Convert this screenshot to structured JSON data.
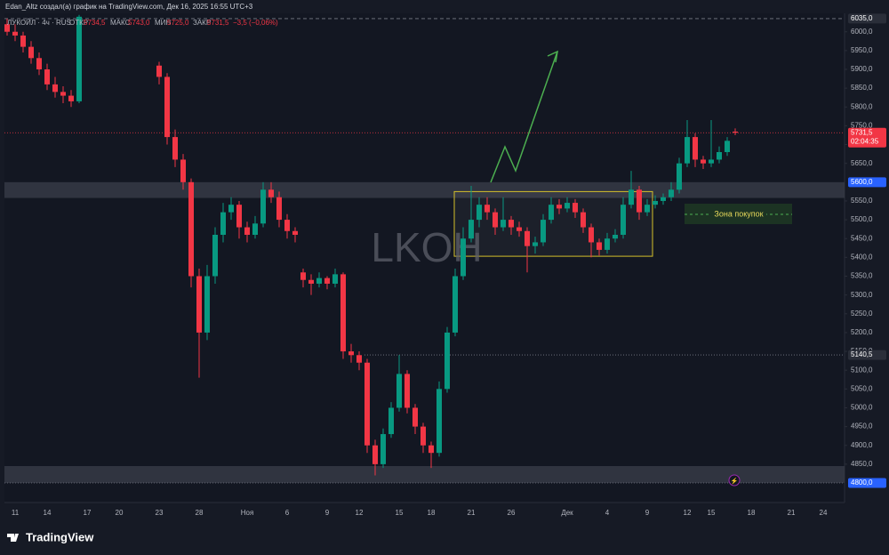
{
  "header": "Edan_Altz создал(а) график на TradingView.com, Дек 16, 2025 16:55 UTC+3",
  "legend": {
    "symbol": "ЛУКОЙЛ · 4ч · RUS",
    "open_label": "ОТКР",
    "open": "5734,5",
    "high_label": "МАКС",
    "high": "5743,0",
    "low_label": "МИН",
    "low": "5725,0",
    "close_label": "ЗАКР",
    "close": "5731,5",
    "change": "−3,5 (−0,06%)"
  },
  "footer": "TradingView",
  "chart_data": {
    "type": "candlestick",
    "watermark": "LKOH",
    "annotation": "Зона покупок",
    "up_color": "#089981",
    "down_color": "#f23645",
    "ylim": [
      4748,
      6049
    ],
    "yticks": [
      {
        "value": 4850,
        "label": "4850,0"
      },
      {
        "value": 4900,
        "label": "4900,0"
      },
      {
        "value": 4950,
        "label": "4950,0"
      },
      {
        "value": 5000,
        "label": "5000,0"
      },
      {
        "value": 5050,
        "label": "5050,0"
      },
      {
        "value": 5100,
        "label": "5100,0"
      },
      {
        "value": 5150,
        "label": "5150,0"
      },
      {
        "value": 5200,
        "label": "5200,0"
      },
      {
        "value": 5250,
        "label": "5250,0"
      },
      {
        "value": 5300,
        "label": "5300,0"
      },
      {
        "value": 5350,
        "label": "5350,0"
      },
      {
        "value": 5400,
        "label": "5400,0"
      },
      {
        "value": 5450,
        "label": "5450,0"
      },
      {
        "value": 5500,
        "label": "5500,0"
      },
      {
        "value": 5550,
        "label": "5550,0"
      },
      {
        "value": 5650,
        "label": "5650,0"
      },
      {
        "value": 5700,
        "label": "5700,0"
      },
      {
        "value": 5750,
        "label": "5750,0"
      },
      {
        "value": 5800,
        "label": "5800,0"
      },
      {
        "value": 5850,
        "label": "5850,0"
      },
      {
        "value": 5900,
        "label": "5900,0"
      },
      {
        "value": 5950,
        "label": "5950,0"
      },
      {
        "value": 6000,
        "label": "6000,0"
      }
    ],
    "price_labels": [
      {
        "value": 6035,
        "label": "6035,0",
        "color": "#2a2e39",
        "line": "dashed"
      },
      {
        "value": 5731.5,
        "label": "5731,5",
        "sub": "02:04:35",
        "color": "#f23645",
        "line": "dotted"
      },
      {
        "value": 5600,
        "label": "5600,0",
        "color": "#2962ff",
        "line": "none"
      },
      {
        "value": 5140.5,
        "label": "5140,5",
        "color": "#2a2e39",
        "line": "dotted"
      },
      {
        "value": 4800,
        "label": "4800,0",
        "color": "#2962ff",
        "line": "dotted"
      }
    ],
    "zones": [
      {
        "from": 5558,
        "to": 5600
      },
      {
        "from": 4800,
        "to": 4845
      }
    ],
    "box": {
      "from": 5403,
      "to": 5575
    },
    "x_labels": [
      null,
      "11",
      null,
      null,
      null,
      "14",
      null,
      null,
      null,
      null,
      "17",
      null,
      null,
      null,
      "20",
      null,
      null,
      null,
      null,
      "23",
      null,
      null,
      null,
      null,
      "28",
      null,
      null,
      null,
      null,
      null,
      "Ноя",
      null,
      null,
      null,
      null,
      "6",
      null,
      null,
      null,
      null,
      "9",
      null,
      null,
      null,
      "12",
      null,
      null,
      null,
      null,
      "15",
      null,
      null,
      null,
      "18",
      null,
      null,
      null,
      null,
      "21",
      null,
      null,
      null,
      null,
      "26",
      null,
      null,
      null,
      null,
      null,
      null,
      "Дек",
      null,
      null,
      null,
      null,
      "4",
      null,
      null,
      null,
      null,
      "9",
      null,
      null,
      null,
      null,
      "12",
      null,
      null,
      "15",
      null,
      null,
      null,
      null,
      "18",
      null,
      null,
      null,
      null,
      "21",
      null,
      null,
      null,
      "24"
    ],
    "candles": [
      [
        6020,
        6035,
        5990,
        6000
      ],
      [
        6000,
        6020,
        5975,
        5990
      ],
      [
        5990,
        6000,
        5945,
        5960
      ],
      [
        5960,
        5975,
        5915,
        5930
      ],
      [
        5930,
        5945,
        5885,
        5900
      ],
      [
        5900,
        5915,
        5845,
        5860
      ],
      [
        5860,
        5880,
        5825,
        5840
      ],
      [
        5840,
        5855,
        5810,
        5830
      ],
      [
        5830,
        5845,
        5800,
        5815
      ],
      [
        5815,
        6045,
        5810,
        6040
      ],
      null,
      null,
      null,
      null,
      null,
      null,
      null,
      null,
      null,
      [
        5910,
        5920,
        5860,
        5880
      ],
      [
        5880,
        5890,
        5700,
        5720
      ],
      [
        5720,
        5740,
        5640,
        5660
      ],
      [
        5660,
        5675,
        5580,
        5600
      ],
      [
        5600,
        5610,
        5320,
        5350
      ],
      [
        5350,
        5370,
        5080,
        5200
      ],
      [
        5200,
        5380,
        5180,
        5350
      ],
      [
        5350,
        5480,
        5330,
        5460
      ],
      [
        5460,
        5545,
        5440,
        5520
      ],
      [
        5520,
        5560,
        5500,
        5540
      ],
      [
        5540,
        5550,
        5450,
        5480
      ],
      [
        5480,
        5495,
        5440,
        5460
      ],
      [
        5460,
        5510,
        5450,
        5490
      ],
      [
        5490,
        5600,
        5480,
        5580
      ],
      [
        5580,
        5600,
        5545,
        5560
      ],
      [
        5560,
        5575,
        5480,
        5500
      ],
      [
        5500,
        5515,
        5450,
        5470
      ],
      [
        5470,
        5480,
        5440,
        5460
      ],
      [
        5360,
        5370,
        5320,
        5340
      ],
      [
        5340,
        5355,
        5300,
        5330
      ],
      [
        5330,
        5360,
        5320,
        5345
      ],
      [
        5345,
        5350,
        5315,
        5330
      ],
      [
        5330,
        5370,
        5320,
        5355
      ],
      [
        5355,
        5360,
        5130,
        5150
      ],
      [
        5150,
        5170,
        5120,
        5140
      ],
      [
        5140,
        5150,
        5100,
        5120
      ],
      [
        5120,
        5130,
        4880,
        4900
      ],
      [
        4900,
        4915,
        4820,
        4850
      ],
      [
        4850,
        4945,
        4840,
        4930
      ],
      [
        4930,
        5015,
        4920,
        5000
      ],
      [
        5000,
        5140,
        4990,
        5090
      ],
      [
        5090,
        5100,
        4985,
        5000
      ],
      [
        5000,
        5010,
        4930,
        4950
      ],
      [
        4950,
        4960,
        4880,
        4900
      ],
      [
        4900,
        4910,
        4840,
        4880
      ],
      [
        4880,
        5070,
        4870,
        5050
      ],
      [
        5050,
        5215,
        5040,
        5200
      ],
      [
        5200,
        5370,
        5190,
        5350
      ],
      [
        5350,
        5480,
        5340,
        5450
      ],
      [
        5450,
        5590,
        5440,
        5500
      ],
      [
        5500,
        5560,
        5480,
        5540
      ],
      [
        5540,
        5560,
        5500,
        5520
      ],
      [
        5520,
        5530,
        5460,
        5480
      ],
      [
        5480,
        5560,
        5470,
        5500
      ],
      [
        5500,
        5510,
        5460,
        5480
      ],
      [
        5480,
        5495,
        5455,
        5470
      ],
      [
        5470,
        5480,
        5360,
        5430
      ],
      [
        5430,
        5455,
        5410,
        5440
      ],
      [
        5440,
        5515,
        5430,
        5500
      ],
      [
        5500,
        5560,
        5490,
        5540
      ],
      [
        5540,
        5555,
        5515,
        5530
      ],
      [
        5530,
        5560,
        5520,
        5545
      ],
      [
        5545,
        5555,
        5505,
        5520
      ],
      [
        5520,
        5530,
        5465,
        5480
      ],
      [
        5480,
        5490,
        5400,
        5440
      ],
      [
        5440,
        5450,
        5405,
        5420
      ],
      [
        5420,
        5465,
        5410,
        5450
      ],
      [
        5450,
        5475,
        5440,
        5460
      ],
      [
        5460,
        5560,
        5450,
        5540
      ],
      [
        5540,
        5630,
        5530,
        5580
      ],
      [
        5580,
        5590,
        5500,
        5520
      ],
      [
        5520,
        5555,
        5510,
        5540
      ],
      [
        5540,
        5565,
        5530,
        5550
      ],
      [
        5550,
        5570,
        5540,
        5560
      ],
      [
        5560,
        5600,
        5550,
        5580
      ],
      [
        5580,
        5665,
        5570,
        5650
      ],
      [
        5650,
        5765,
        5640,
        5720
      ],
      [
        5720,
        5730,
        5640,
        5660
      ],
      [
        5660,
        5670,
        5635,
        5650
      ],
      [
        5650,
        5765,
        5640,
        5660
      ],
      [
        5660,
        5695,
        5650,
        5680
      ],
      [
        5680,
        5720,
        5670,
        5710
      ],
      [
        5734.5,
        5743,
        5725,
        5731.5
      ],
      null,
      null,
      null,
      null,
      null,
      null,
      null,
      null,
      null,
      null,
      null
    ]
  }
}
